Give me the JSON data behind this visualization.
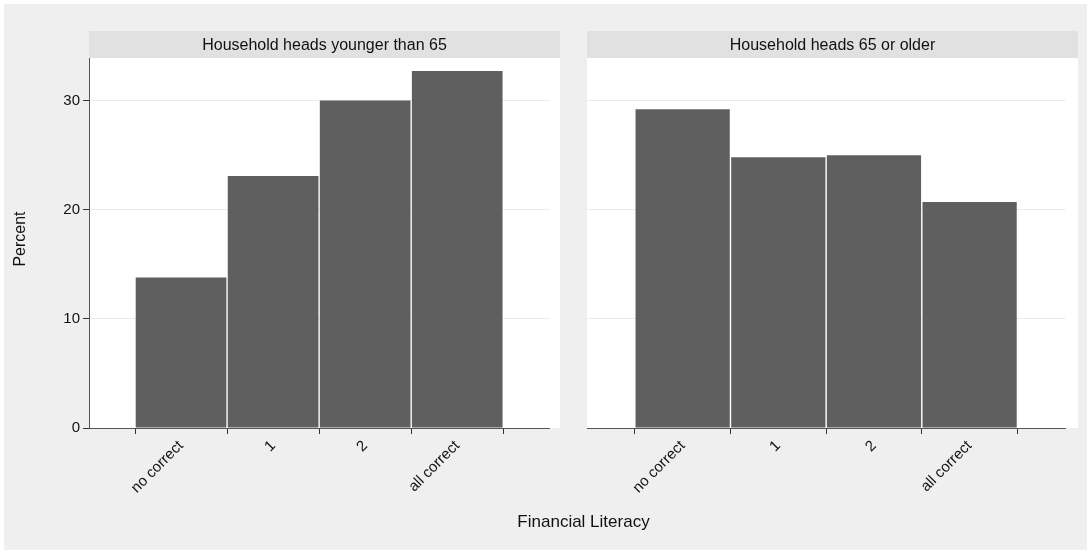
{
  "chart_data": [
    {
      "type": "bar",
      "title": "Household heads younger than 65",
      "ylabel": "Percent",
      "xlabel": "Financial Literacy",
      "categories": [
        null,
        "no correct",
        "1",
        "2",
        "all correct",
        null
      ],
      "values": [
        null,
        13.8,
        23.1,
        30.0,
        32.7,
        null
      ],
      "color": "#5f5f5f",
      "ylim": [
        0,
        33.9
      ],
      "yticks": [
        0,
        10,
        20,
        30
      ],
      "grid": "y"
    },
    {
      "type": "bar",
      "title": "Household heads 65 or older",
      "categories": [
        null,
        "no correct",
        "1",
        "2",
        "all correct",
        null
      ],
      "values": [
        null,
        29.2,
        24.8,
        25.0,
        20.7,
        null
      ],
      "color": "#5f5f5f",
      "ylim": [
        0,
        33.9
      ],
      "yticks": [
        0,
        10,
        20,
        30
      ],
      "grid": "y",
      "tick_labels": "x"
    }
  ]
}
